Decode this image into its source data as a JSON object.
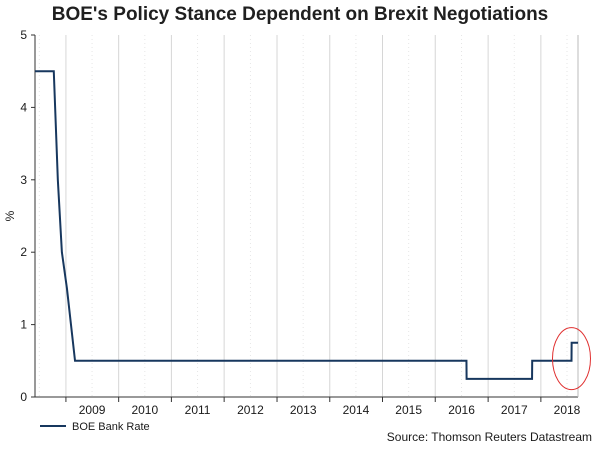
{
  "chart_data": {
    "type": "line",
    "title": "BOE's Policy Stance Dependent on Brexit Negotiations",
    "xlabel": "",
    "ylabel": "%",
    "ylim": [
      0,
      5
    ],
    "xlim": [
      "2008-06-01",
      "2018-09-15"
    ],
    "y_ticks": [
      "0",
      "1",
      "2",
      "3",
      "4",
      "5"
    ],
    "x_ticks": [
      "2009",
      "2010",
      "2011",
      "2012",
      "2013",
      "2014",
      "2015",
      "2016",
      "2017",
      "2018"
    ],
    "grid": "vertical",
    "legend_position": "bottom-left",
    "series": [
      {
        "name": "BOE Bank Rate",
        "color": "#17375e",
        "points": [
          [
            "2008-06-01",
            4.5
          ],
          [
            "2008-10-08",
            4.5
          ],
          [
            "2008-10-09",
            4.5
          ],
          [
            "2008-11-06",
            3.0
          ],
          [
            "2008-12-04",
            2.0
          ],
          [
            "2009-01-08",
            1.5
          ],
          [
            "2009-02-05",
            1.0
          ],
          [
            "2009-03-05",
            0.5
          ],
          [
            "2016-08-04",
            0.5
          ],
          [
            "2016-08-05",
            0.25
          ],
          [
            "2017-11-01",
            0.25
          ],
          [
            "2017-11-02",
            0.5
          ],
          [
            "2018-08-01",
            0.5
          ],
          [
            "2018-08-02",
            0.75
          ],
          [
            "2018-09-15",
            0.75
          ]
        ]
      }
    ],
    "annotations": [
      {
        "type": "ellipse",
        "color": "#e03030",
        "center": [
          "2018-08-01",
          0.53
        ]
      }
    ]
  },
  "source_text": "Source: Thomson Reuters Datastream"
}
